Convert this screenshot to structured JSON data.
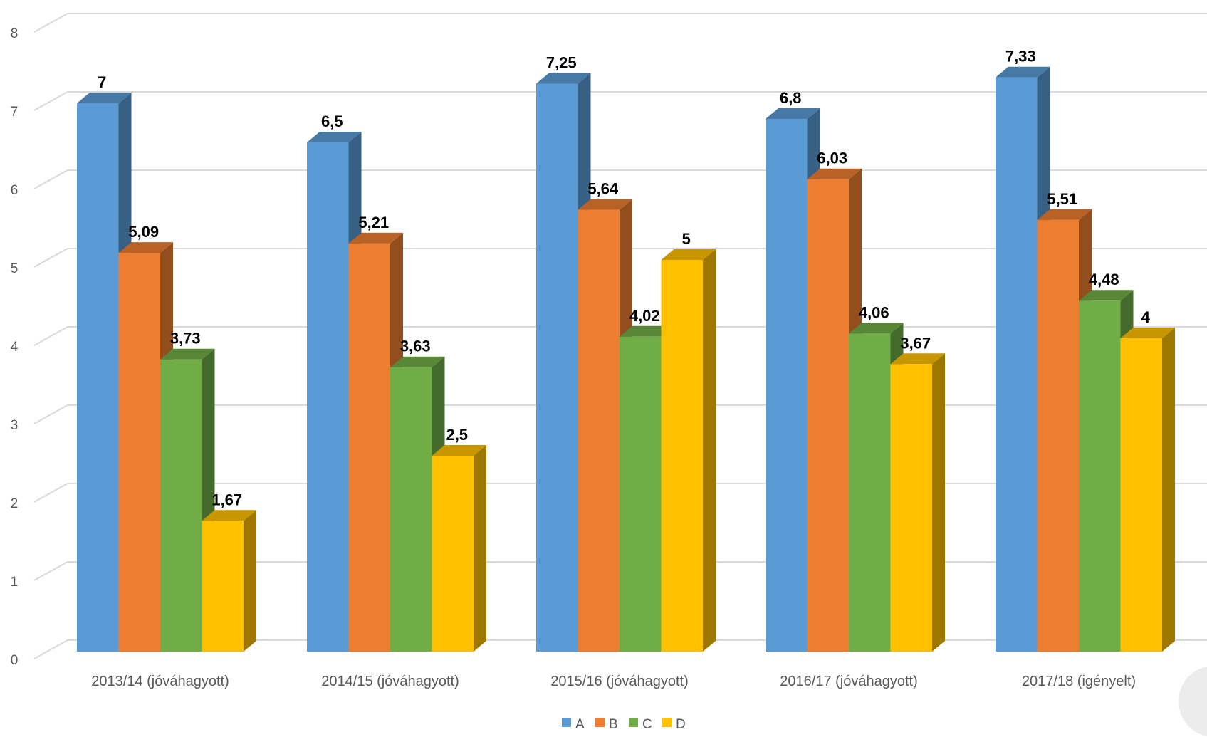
{
  "chart_data": {
    "type": "bar",
    "style": "3d-clustered-column",
    "categories": [
      "2013/14 (jóváhagyott)",
      "2014/15 (jóváhagyott)",
      "2015/16 (jóváhagyott)",
      "2016/17 (jóváhagyott)",
      "2017/18 (igényelt)"
    ],
    "series": [
      {
        "name": "A",
        "values": [
          7,
          6.5,
          7.25,
          6.8,
          7.33
        ],
        "labels": [
          "7",
          "6,5",
          "7,25",
          "6,8",
          "7,33"
        ],
        "color": "#5B9BD5"
      },
      {
        "name": "B",
        "values": [
          5.09,
          5.21,
          5.64,
          6.03,
          5.51
        ],
        "labels": [
          "5,09",
          "5,21",
          "5,64",
          "6,03",
          "5,51"
        ],
        "color": "#ED7D31"
      },
      {
        "name": "C",
        "values": [
          3.73,
          3.63,
          4.02,
          4.06,
          4.48
        ],
        "labels": [
          "3,73",
          "3,63",
          "4,02",
          "4,06",
          "4,48"
        ],
        "color": "#70AD47"
      },
      {
        "name": "D",
        "values": [
          1.67,
          2.5,
          5,
          3.67,
          4
        ],
        "labels": [
          "1,67",
          "2,5",
          "5",
          "3,67",
          "4"
        ],
        "color": "#FFC000"
      }
    ],
    "yticks": [
      "0",
      "1",
      "2",
      "3",
      "4",
      "5",
      "6",
      "7",
      "8"
    ],
    "ylim": [
      0,
      8
    ],
    "grid": true,
    "legend": "bottom",
    "title": "",
    "xlabel": "",
    "ylabel": ""
  }
}
